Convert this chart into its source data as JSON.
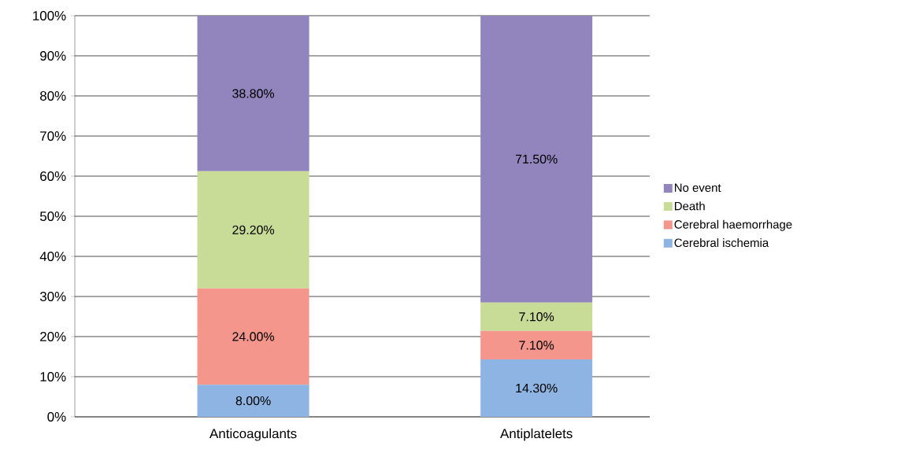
{
  "chart_data": {
    "type": "bar",
    "stacked": true,
    "categories": [
      "Anticoagulants",
      "Antiplatelets"
    ],
    "series": [
      {
        "name": "Cerebral ischemia",
        "color": "#8db4e2",
        "values": [
          8.0,
          14.3
        ],
        "value_labels": [
          "8.00%",
          "14.30%"
        ]
      },
      {
        "name": "Cerebral haemorrhage",
        "color": "#f4968c",
        "values": [
          24.0,
          7.1
        ],
        "value_labels": [
          "24.00%",
          "7.10%"
        ]
      },
      {
        "name": "Death",
        "color": "#c8dc98",
        "values": [
          29.2,
          7.1
        ],
        "value_labels": [
          "29.20%",
          "7.10%"
        ]
      },
      {
        "name": "No event",
        "color": "#9284bc",
        "values": [
          38.8,
          71.5
        ],
        "value_labels": [
          "38.80%",
          "71.50%"
        ]
      }
    ],
    "ylim": [
      0,
      100
    ],
    "yticks": [
      {
        "value": 0,
        "label": "0%"
      },
      {
        "value": 10,
        "label": "10%"
      },
      {
        "value": 20,
        "label": "20%"
      },
      {
        "value": 30,
        "label": "30%"
      },
      {
        "value": 40,
        "label": "40%"
      },
      {
        "value": 50,
        "label": "50%"
      },
      {
        "value": 60,
        "label": "60%"
      },
      {
        "value": 70,
        "label": "70%"
      },
      {
        "value": 80,
        "label": "80%"
      },
      {
        "value": 90,
        "label": "90%"
      },
      {
        "value": 100,
        "label": "100%"
      }
    ],
    "grid": "y",
    "legend": "right"
  }
}
